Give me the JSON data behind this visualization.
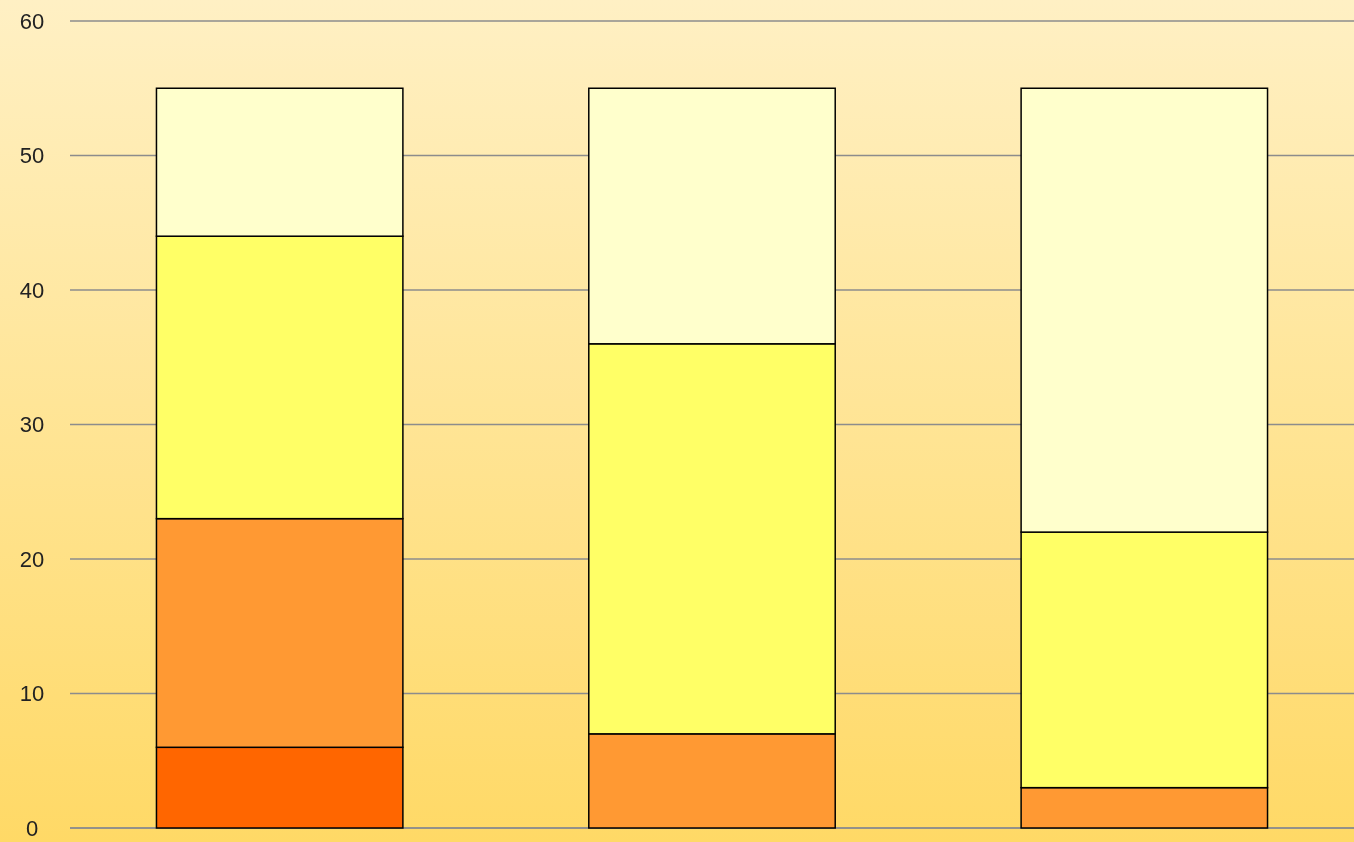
{
  "chart_data": {
    "type": "bar",
    "stacked": true,
    "categories": [
      null,
      null,
      null
    ],
    "series": [
      {
        "color": "#ff6600",
        "values": [
          6,
          0,
          0
        ]
      },
      {
        "color": "#ff9933",
        "values": [
          17,
          7,
          3
        ]
      },
      {
        "color": "#ffff66",
        "values": [
          21,
          29,
          19
        ]
      },
      {
        "color": "#ffffcc",
        "values": [
          11,
          19,
          33
        ]
      }
    ],
    "ylim": [
      0,
      60
    ],
    "yticks": [
      0,
      10,
      20,
      30,
      40,
      50,
      60
    ],
    "grid": "y"
  }
}
